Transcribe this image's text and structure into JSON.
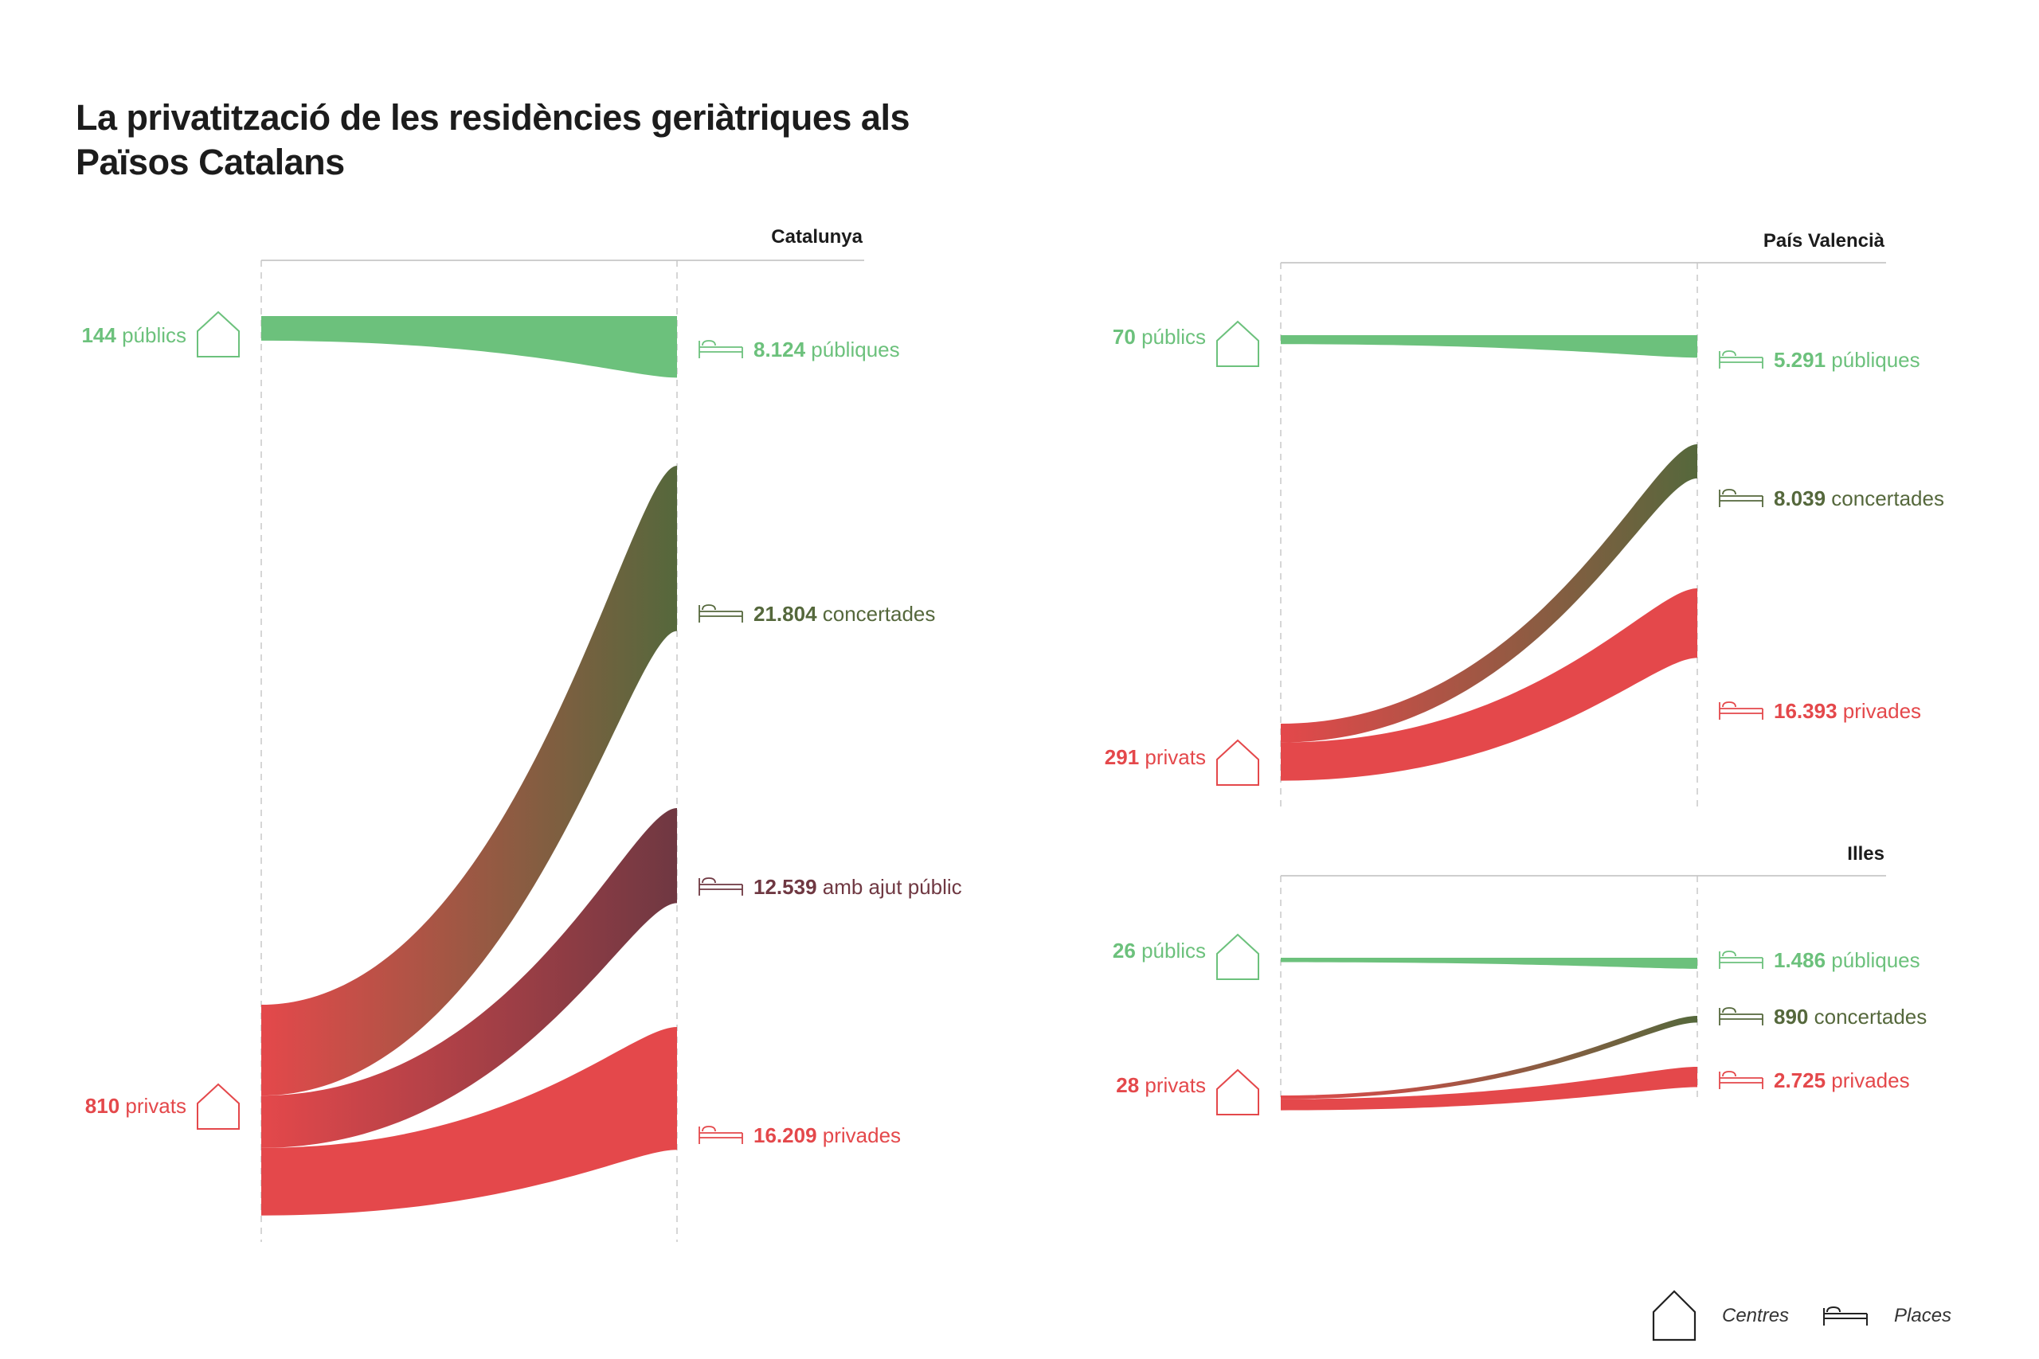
{
  "title": "La privatització de les residències geriàtriques als Països Catalans",
  "colors": {
    "public": "#6cc17c",
    "concert": "#55683c",
    "ajut": "#6f3842",
    "private": "#e4484b"
  },
  "legend": {
    "centres_label": "Centres",
    "centres_icon": "house-icon",
    "places_label": "Places",
    "places_icon": "bed-icon"
  },
  "chart_data": [
    {
      "type": "sankey",
      "region": "Catalunya",
      "left_label": "Centres",
      "right_label": "Places",
      "sources": [
        {
          "key": "public",
          "value": "144",
          "label": "públics"
        },
        {
          "key": "private",
          "value": "810",
          "label": "privats"
        }
      ],
      "targets": [
        {
          "key": "public",
          "value": "8.124",
          "label": "públiques"
        },
        {
          "key": "concert",
          "value": "21.804",
          "label": "concertades"
        },
        {
          "key": "ajut",
          "value": "12.539",
          "label": "amb ajut públic"
        },
        {
          "key": "private",
          "value": "16.209",
          "label": "privades"
        }
      ],
      "flows": [
        {
          "from": "públics",
          "to": "públiques",
          "value": 8124
        },
        {
          "from": "privats",
          "to": "concertades",
          "value": 21804
        },
        {
          "from": "privats",
          "to": "amb ajut públic",
          "value": 12539
        },
        {
          "from": "privats",
          "to": "privades",
          "value": 16209
        }
      ]
    },
    {
      "type": "sankey",
      "region": "País Valencià",
      "left_label": "Centres",
      "right_label": "Places",
      "sources": [
        {
          "key": "public",
          "value": "70",
          "label": "públics"
        },
        {
          "key": "private",
          "value": "291",
          "label": "privats"
        }
      ],
      "targets": [
        {
          "key": "public",
          "value": "5.291",
          "label": "públiques"
        },
        {
          "key": "concert",
          "value": "8.039",
          "label": "concertades"
        },
        {
          "key": "private",
          "value": "16.393",
          "label": "privades"
        }
      ],
      "flows": [
        {
          "from": "públics",
          "to": "públiques",
          "value": 5291
        },
        {
          "from": "privats",
          "to": "concertades",
          "value": 8039
        },
        {
          "from": "privats",
          "to": "privades",
          "value": 16393
        }
      ]
    },
    {
      "type": "sankey",
      "region": "Illes",
      "left_label": "Centres",
      "right_label": "Places",
      "sources": [
        {
          "key": "public",
          "value": "26",
          "label": "públics"
        },
        {
          "key": "private",
          "value": "28",
          "label": "privats"
        }
      ],
      "targets": [
        {
          "key": "public",
          "value": "1.486",
          "label": "públiques"
        },
        {
          "key": "concert",
          "value": "890",
          "label": "concertades"
        },
        {
          "key": "private",
          "value": "2.725",
          "label": "privades"
        }
      ],
      "flows": [
        {
          "from": "públics",
          "to": "públiques",
          "value": 1486
        },
        {
          "from": "privats",
          "to": "concertades",
          "value": 890
        },
        {
          "from": "privats",
          "to": "privades",
          "value": 2725
        }
      ]
    }
  ]
}
